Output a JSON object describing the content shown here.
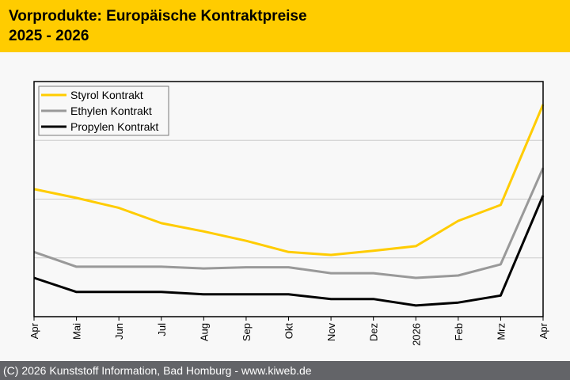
{
  "header": {
    "title": "Vorprodukte: Europäische Kontraktpreise",
    "subtitle": "2025 - 2026"
  },
  "footer": {
    "credit": "(C) 2026 Kunststoff Information, Bad Homburg - www.kiweb.de"
  },
  "colors": {
    "header_bg": "#ffcc00",
    "footer_bg": "#636468",
    "styrol": "#ffcc00",
    "ethylen": "#999999",
    "propylen": "#000000"
  },
  "chart_data": {
    "type": "line",
    "title": "Vorprodukte: Europäische Kontraktpreise 2025 - 2026",
    "xlabel": "",
    "ylabel": "",
    "y_units": "relative index (gridline units, no tick labels shown)",
    "ylim": [
      0,
      4
    ],
    "y_gridlines": [
      1,
      2,
      3
    ],
    "grid": true,
    "legend_position": "top-left",
    "categories": [
      "Apr",
      "Mai",
      "Jun",
      "Jul",
      "Aug",
      "Sep",
      "Okt",
      "Nov",
      "Dez",
      "2026",
      "Feb",
      "Mrz",
      "Apr"
    ],
    "series": [
      {
        "name": "Styrol Kontrakt",
        "color": "#ffcc00",
        "values": [
          2.17,
          2.02,
          1.85,
          1.59,
          1.45,
          1.29,
          1.1,
          1.05,
          1.12,
          1.2,
          1.63,
          1.9,
          3.61
        ]
      },
      {
        "name": "Ethylen Kontrakt",
        "color": "#999999",
        "values": [
          1.1,
          0.85,
          0.85,
          0.85,
          0.82,
          0.84,
          0.84,
          0.74,
          0.74,
          0.66,
          0.7,
          0.89,
          2.53
        ]
      },
      {
        "name": "Propylen Kontrakt",
        "color": "#000000",
        "values": [
          0.66,
          0.42,
          0.42,
          0.42,
          0.38,
          0.38,
          0.38,
          0.3,
          0.3,
          0.19,
          0.24,
          0.36,
          2.06
        ]
      }
    ]
  }
}
